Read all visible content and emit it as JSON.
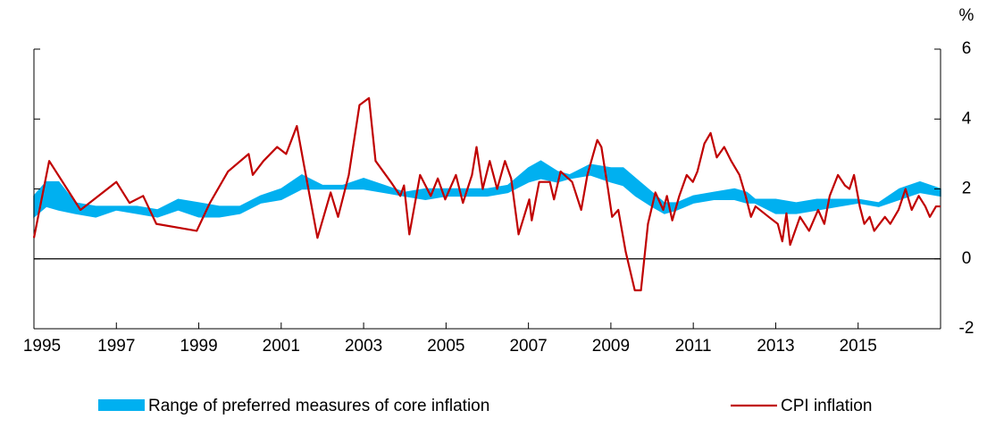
{
  "chart_data": {
    "type": "line",
    "y_unit": "%",
    "xlim": [
      1995,
      2017
    ],
    "xticks": [
      1995,
      1997,
      1999,
      2001,
      2003,
      2005,
      2007,
      2009,
      2011,
      2013,
      2015
    ],
    "ylim": [
      -2,
      6
    ],
    "yticks": [
      -2,
      0,
      2,
      4,
      6
    ],
    "series": [
      {
        "name": "Range of preferred measures of core inflation",
        "color": "#00b0f0",
        "kind": "band",
        "x": [
          1995.0,
          1995.3,
          1995.6,
          1996.0,
          1996.5,
          1997.0,
          1997.5,
          1998.0,
          1998.5,
          1999.0,
          1999.5,
          2000.0,
          2000.5,
          2001.0,
          2001.5,
          2002.0,
          2002.5,
          2003.0,
          2003.5,
          2004.0,
          2004.5,
          2005.0,
          2005.5,
          2006.0,
          2006.5,
          2007.0,
          2007.3,
          2007.7,
          2008.0,
          2008.5,
          2009.0,
          2009.3,
          2009.6,
          2010.0,
          2010.3,
          2010.6,
          2011.0,
          2011.5,
          2012.0,
          2012.3,
          2012.5,
          2013.0,
          2013.5,
          2014.0,
          2014.5,
          2015.0,
          2015.5,
          2016.0,
          2016.5,
          2017.0
        ],
        "low": [
          1.2,
          1.5,
          1.4,
          1.3,
          1.2,
          1.4,
          1.3,
          1.2,
          1.4,
          1.2,
          1.2,
          1.3,
          1.6,
          1.7,
          2.0,
          2.0,
          2.0,
          2.0,
          1.9,
          1.8,
          1.7,
          1.8,
          1.8,
          1.8,
          1.9,
          2.2,
          2.3,
          2.2,
          2.3,
          2.4,
          2.2,
          2.1,
          1.8,
          1.5,
          1.3,
          1.4,
          1.6,
          1.7,
          1.7,
          1.6,
          1.6,
          1.3,
          1.3,
          1.4,
          1.5,
          1.6,
          1.5,
          1.7,
          1.9,
          1.8
        ],
        "high": [
          1.8,
          2.2,
          2.2,
          1.6,
          1.5,
          1.5,
          1.5,
          1.4,
          1.7,
          1.6,
          1.5,
          1.5,
          1.8,
          2.0,
          2.4,
          2.1,
          2.1,
          2.3,
          2.1,
          1.9,
          2.0,
          2.0,
          2.0,
          2.0,
          2.1,
          2.6,
          2.8,
          2.5,
          2.4,
          2.7,
          2.6,
          2.6,
          2.3,
          1.9,
          1.6,
          1.6,
          1.8,
          1.9,
          2.0,
          1.9,
          1.7,
          1.7,
          1.6,
          1.7,
          1.7,
          1.7,
          1.6,
          2.0,
          2.2,
          2.0
        ]
      },
      {
        "name": "CPI inflation",
        "color": "#c00000",
        "kind": "line",
        "x": [
          1995.0,
          1995.37,
          1996.13,
          1997.0,
          1997.32,
          1997.65,
          1997.97,
          1998.95,
          1999.27,
          1999.71,
          2000.21,
          2000.31,
          2000.57,
          2000.9,
          2001.12,
          2001.38,
          2001.55,
          2001.88,
          2002.2,
          2002.38,
          2002.64,
          2002.9,
          2003.13,
          2003.29,
          2003.66,
          2003.89,
          2003.98,
          2004.11,
          2004.37,
          2004.63,
          2004.8,
          2004.98,
          2005.24,
          2005.41,
          2005.63,
          2005.74,
          2005.89,
          2006.06,
          2006.24,
          2006.43,
          2006.58,
          2006.76,
          2007.02,
          2007.08,
          2007.26,
          2007.52,
          2007.62,
          2007.78,
          2008.06,
          2008.28,
          2008.43,
          2008.67,
          2008.77,
          2008.93,
          2009.03,
          2009.18,
          2009.36,
          2009.58,
          2009.73,
          2009.9,
          2010.08,
          2010.27,
          2010.36,
          2010.49,
          2010.66,
          2010.84,
          2010.99,
          2011.1,
          2011.27,
          2011.42,
          2011.57,
          2011.75,
          2011.92,
          2012.12,
          2012.27,
          2012.4,
          2012.51,
          2012.83,
          2013.05,
          2013.16,
          2013.26,
          2013.35,
          2013.59,
          2013.81,
          2014.03,
          2014.18,
          2014.31,
          2014.51,
          2014.68,
          2014.79,
          2014.9,
          2015.04,
          2015.15,
          2015.28,
          2015.39,
          2015.65,
          2015.78,
          2015.98,
          2016.15,
          2016.3,
          2016.47,
          2016.63,
          2016.74,
          2016.89,
          2017.0
        ],
        "values": [
          0.6,
          2.8,
          1.4,
          2.2,
          1.6,
          1.8,
          1.0,
          0.8,
          1.6,
          2.5,
          3.0,
          2.4,
          2.8,
          3.2,
          3.0,
          3.8,
          2.7,
          0.6,
          1.9,
          1.2,
          2.4,
          4.4,
          4.6,
          2.8,
          2.2,
          1.8,
          2.1,
          0.7,
          2.4,
          1.8,
          2.3,
          1.7,
          2.4,
          1.6,
          2.4,
          3.2,
          2.0,
          2.8,
          2.0,
          2.8,
          2.3,
          0.7,
          1.7,
          1.1,
          2.2,
          2.2,
          1.7,
          2.5,
          2.2,
          1.4,
          2.4,
          3.4,
          3.2,
          2.0,
          1.2,
          1.4,
          0.2,
          -0.9,
          -0.9,
          1.0,
          1.9,
          1.4,
          1.8,
          1.1,
          1.8,
          2.4,
          2.2,
          2.5,
          3.3,
          3.6,
          2.9,
          3.2,
          2.8,
          2.4,
          1.8,
          1.2,
          1.5,
          1.2,
          1.0,
          0.5,
          1.3,
          0.4,
          1.2,
          0.8,
          1.4,
          1.0,
          1.8,
          2.4,
          2.1,
          2.0,
          2.4,
          1.5,
          1.0,
          1.2,
          0.8,
          1.2,
          1.0,
          1.4,
          2.0,
          1.4,
          1.8,
          1.5,
          1.2,
          1.5,
          1.5
        ]
      }
    ]
  }
}
